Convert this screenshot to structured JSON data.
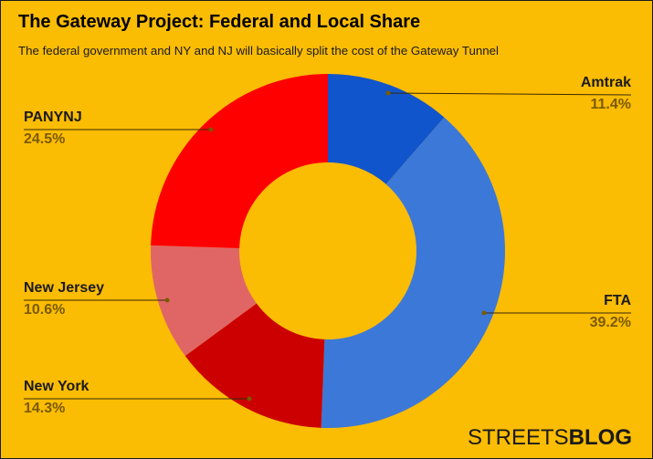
{
  "chart_data": {
    "type": "pie",
    "variant": "donut",
    "title": "The Gateway Project: Federal and Local Share",
    "subtitle": "The federal government and NY and NJ will basically split the cost of the Gateway Tunnel",
    "categories": [
      "Amtrak",
      "FTA",
      "New York",
      "New Jersey",
      "PANYNJ"
    ],
    "values": [
      11.4,
      39.2,
      14.3,
      10.6,
      24.5
    ],
    "labels": [
      "11.4%",
      "39.2%",
      "14.3%",
      "10.6%",
      "24.5%"
    ],
    "colors": [
      "#1155CC",
      "#3C78D8",
      "#CC0000",
      "#E06666",
      "#FF0000"
    ],
    "start_angle": "top, clockwise",
    "legend": "callout labels"
  },
  "header": {
    "title": "The Gateway Project: Federal and Local Share",
    "subtitle": "The federal government and NY and NJ will basically split the cost of the Gateway Tunnel"
  },
  "labels": {
    "amtrak": {
      "name": "Amtrak",
      "pct": "11.4%"
    },
    "fta": {
      "name": "FTA",
      "pct": "39.2%"
    },
    "new_york": {
      "name": "New York",
      "pct": "14.3%"
    },
    "new_jersey": {
      "name": "New Jersey",
      "pct": "10.6%"
    },
    "panynj": {
      "name": "PANYNJ",
      "pct": "24.5%"
    }
  },
  "brand": {
    "light": "STREETS",
    "bold": "BLOG"
  },
  "colors": {
    "background": "#FBBC04",
    "leader": "#3a2a00",
    "dot": "#7a5a00"
  }
}
